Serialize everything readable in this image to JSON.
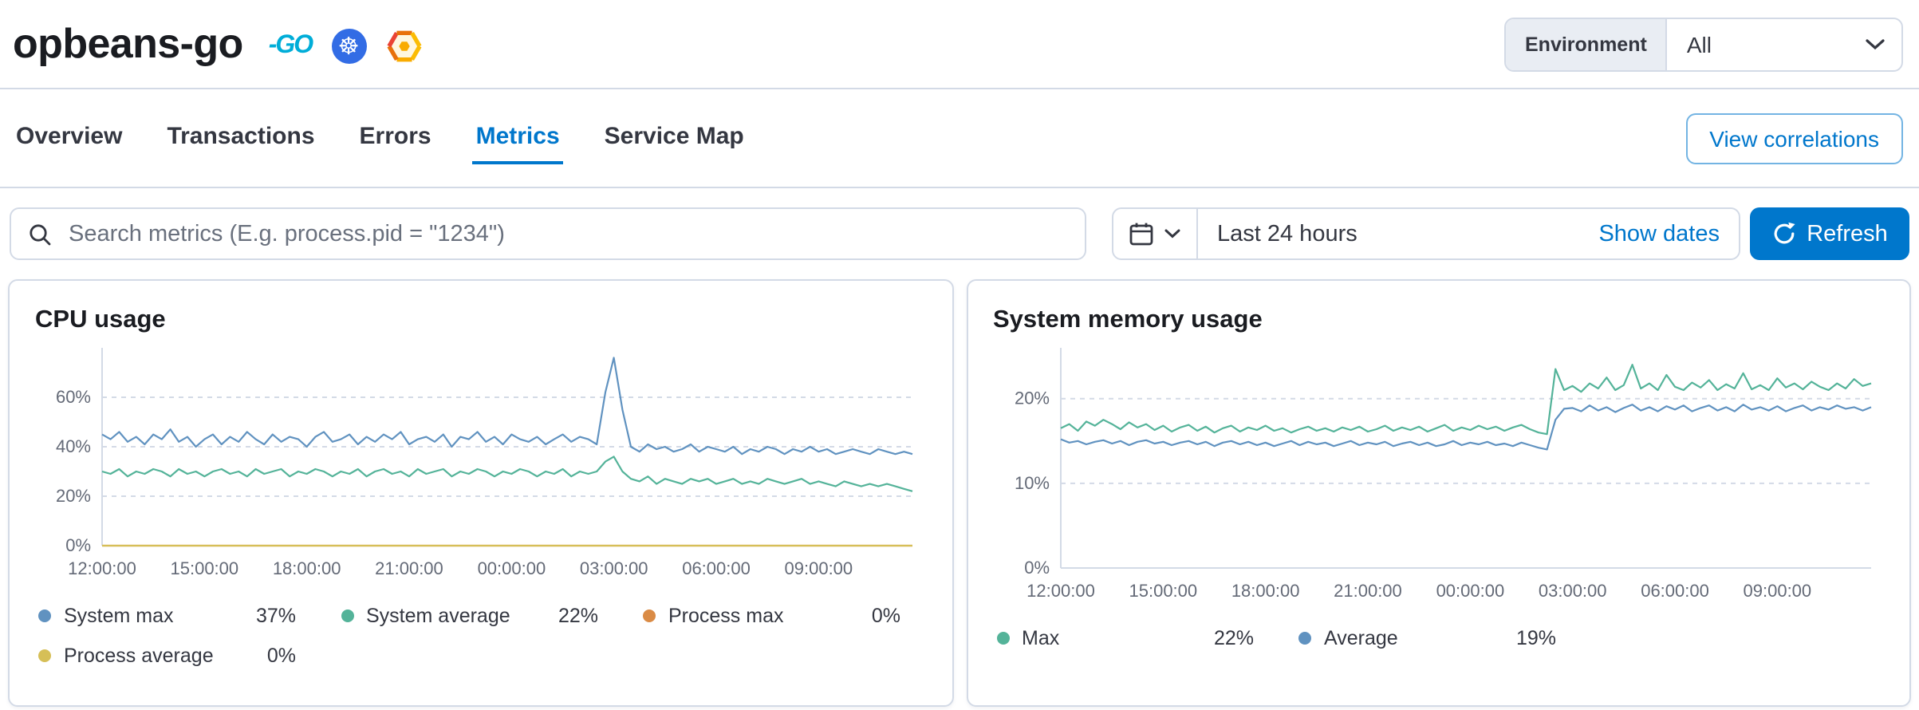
{
  "header": {
    "service_name": "opbeans-go",
    "icons": [
      {
        "name": "go-logo",
        "glyph": "-GO"
      },
      {
        "name": "kubernetes-logo",
        "glyph": "☸"
      },
      {
        "name": "gcp-logo",
        "glyph": ""
      }
    ],
    "environment": {
      "label": "Environment",
      "value": "All"
    }
  },
  "tabs": {
    "items": [
      {
        "label": "Overview",
        "active": false
      },
      {
        "label": "Transactions",
        "active": false
      },
      {
        "label": "Errors",
        "active": false
      },
      {
        "label": "Metrics",
        "active": true
      },
      {
        "label": "Service Map",
        "active": false
      }
    ],
    "view_correlations_label": "View correlations"
  },
  "toolbar": {
    "search_placeholder": "Search metrics (E.g. process.pid = \"1234\")",
    "time_range": "Last 24 hours",
    "show_dates_label": "Show dates",
    "refresh_label": "Refresh"
  },
  "colors": {
    "accent": "#0077cc",
    "border": "#d3dae6",
    "text": "#343741",
    "subdued_text": "#646a77",
    "series_blue": "#6092c0",
    "series_green": "#54b399",
    "series_orange": "#da8b45",
    "series_yellow": "#d6bf57",
    "kubernetes_blue": "#326ce5",
    "go_cyan": "#00add8"
  },
  "chart_data": [
    {
      "type": "line",
      "title": "CPU usage",
      "ylim": [
        0,
        80
      ],
      "yticks": [
        0,
        20,
        40,
        60
      ],
      "ytick_suffix": "%",
      "grid": "dashed",
      "legend_position": "bottom",
      "xtick_labels": [
        "12:00:00",
        "15:00:00",
        "18:00:00",
        "21:00:00",
        "00:00:00",
        "03:00:00",
        "06:00:00",
        "09:00:00"
      ],
      "xtick_positions": [
        0,
        0.1263,
        0.2526,
        0.3789,
        0.5053,
        0.6316,
        0.7579,
        0.8842
      ],
      "legend": [
        {
          "label": "System max",
          "value": "37%",
          "color": "#6092c0"
        },
        {
          "label": "System average",
          "value": "22%",
          "color": "#54b399"
        },
        {
          "label": "Process max",
          "value": "0%",
          "color": "#da8b45"
        },
        {
          "label": "Process average",
          "value": "0%",
          "color": "#d6bf57"
        }
      ],
      "series": [
        {
          "name": "System max",
          "color": "#6092c0",
          "values": [
            45,
            43,
            46,
            42,
            44,
            41,
            45,
            43,
            47,
            42,
            44,
            40,
            43,
            45,
            41,
            44,
            42,
            46,
            43,
            41,
            45,
            42,
            44,
            43,
            40,
            44,
            46,
            42,
            43,
            45,
            41,
            44,
            42,
            45,
            43,
            46,
            41,
            43,
            44,
            42,
            45,
            40,
            44,
            43,
            46,
            42,
            44,
            41,
            45,
            43,
            42,
            44,
            41,
            43,
            45,
            42,
            44,
            43,
            41,
            62,
            76,
            55,
            40,
            38,
            41,
            39,
            40,
            38,
            39,
            41,
            38,
            40,
            39,
            38,
            40,
            37,
            39,
            38,
            40,
            39,
            37,
            39,
            38,
            40,
            38,
            39,
            37,
            38,
            39,
            38,
            37,
            39,
            38,
            37,
            38,
            37
          ]
        },
        {
          "name": "System average",
          "color": "#54b399",
          "values": [
            30,
            29,
            31,
            28,
            30,
            29,
            31,
            30,
            28,
            31,
            29,
            30,
            28,
            30,
            31,
            29,
            30,
            28,
            31,
            29,
            30,
            31,
            28,
            30,
            29,
            31,
            30,
            28,
            30,
            29,
            31,
            28,
            30,
            31,
            29,
            30,
            28,
            31,
            29,
            30,
            31,
            28,
            30,
            29,
            31,
            30,
            28,
            30,
            29,
            31,
            30,
            28,
            30,
            29,
            31,
            28,
            30,
            29,
            30,
            34,
            36,
            30,
            27,
            26,
            28,
            25,
            27,
            26,
            25,
            27,
            26,
            27,
            25,
            26,
            27,
            25,
            26,
            25,
            27,
            26,
            25,
            26,
            27,
            25,
            26,
            25,
            24,
            26,
            25,
            24,
            25,
            24,
            25,
            24,
            23,
            22
          ]
        },
        {
          "name": "Process max",
          "color": "#da8b45",
          "values": [
            0,
            0
          ]
        },
        {
          "name": "Process average",
          "color": "#d6bf57",
          "values": [
            0,
            0
          ]
        }
      ]
    },
    {
      "type": "line",
      "title": "System memory usage",
      "ylim": [
        0,
        26
      ],
      "yticks": [
        0,
        10,
        20
      ],
      "ytick_suffix": "%",
      "grid": "dashed",
      "legend_position": "bottom",
      "xtick_labels": [
        "12:00:00",
        "15:00:00",
        "18:00:00",
        "21:00:00",
        "00:00:00",
        "03:00:00",
        "06:00:00",
        "09:00:00"
      ],
      "xtick_positions": [
        0,
        0.1263,
        0.2526,
        0.3789,
        0.5053,
        0.6316,
        0.7579,
        0.8842
      ],
      "legend": [
        {
          "label": "Max",
          "value": "22%",
          "color": "#54b399"
        },
        {
          "label": "Average",
          "value": "19%",
          "color": "#6092c0"
        }
      ],
      "series": [
        {
          "name": "Max",
          "color": "#54b399",
          "values": [
            16.5,
            17,
            16.2,
            17.3,
            16.8,
            17.5,
            17,
            16.4,
            17.2,
            16.6,
            17,
            16.3,
            16.8,
            16.1,
            16.6,
            16.9,
            16.2,
            16.7,
            16,
            16.5,
            16.8,
            16.1,
            16.6,
            16.3,
            16.8,
            16.2,
            16.5,
            16,
            16.4,
            16.7,
            16.2,
            16.5,
            16.1,
            16.6,
            16.3,
            16.7,
            16.1,
            16.4,
            16.8,
            16.2,
            16.6,
            16.3,
            16.7,
            16.1,
            16.5,
            16.9,
            16.2,
            16.6,
            16.3,
            16.8,
            16.4,
            16.7,
            16.2,
            16.6,
            16.9,
            16.4,
            16,
            15.8,
            23.5,
            21,
            21.5,
            20.8,
            21.8,
            21.2,
            22.5,
            21,
            21.6,
            24,
            21.2,
            21.8,
            21,
            22.8,
            21.4,
            21,
            21.9,
            21.3,
            22.2,
            21,
            21.7,
            21.2,
            23,
            21.1,
            21.6,
            21,
            22.4,
            21.3,
            21.8,
            21.1,
            22,
            21.4,
            21,
            21.8,
            21.2,
            22.3,
            21.5,
            21.8
          ]
        },
        {
          "name": "Average",
          "color": "#6092c0",
          "values": [
            15.2,
            14.8,
            15,
            14.6,
            14.9,
            15.1,
            14.7,
            15,
            14.5,
            14.9,
            15.1,
            14.7,
            14.9,
            14.5,
            14.8,
            15,
            14.6,
            14.9,
            14.4,
            14.8,
            15,
            14.6,
            14.9,
            14.5,
            14.8,
            14.4,
            14.7,
            15,
            14.5,
            14.9,
            14.6,
            14.8,
            14.4,
            14.7,
            15,
            14.5,
            14.8,
            14.6,
            14.9,
            14.4,
            14.7,
            14.9,
            14.5,
            14.8,
            14.4,
            14.6,
            15,
            14.5,
            14.8,
            14.6,
            14.9,
            14.5,
            14.7,
            14.4,
            14.8,
            14.5,
            14.2,
            14,
            17.5,
            18.8,
            18.9,
            18.5,
            19.2,
            18.6,
            19,
            18.4,
            18.9,
            19.3,
            18.6,
            19,
            18.5,
            19.1,
            18.7,
            19.2,
            18.5,
            18.9,
            19.2,
            18.6,
            19,
            18.5,
            19.3,
            18.7,
            19,
            18.6,
            19.1,
            18.5,
            18.9,
            19.2,
            18.6,
            19,
            18.7,
            19.2,
            18.8,
            19,
            18.6,
            19
          ]
        }
      ]
    }
  ]
}
